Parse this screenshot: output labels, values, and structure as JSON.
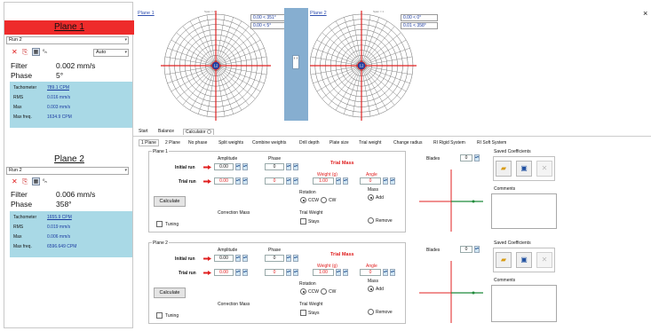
{
  "left_panel": {
    "plane1": {
      "title": "Plane 1",
      "run": "Run 2",
      "auto": "Auto",
      "unit_glyph": "⁰ₙ",
      "filter_label": "Filter",
      "filter_value": "0.002 mm/s",
      "phase_label": "Phase",
      "phase_value": "5°",
      "info": [
        {
          "label": "Tachometer",
          "value": "789.1 CPM"
        },
        {
          "label": "RMS",
          "value": "0.016 mm/s"
        },
        {
          "label": "Max",
          "value": "0.003 mm/s"
        },
        {
          "label": "Max freq.",
          "value": "1634.9 CPM"
        }
      ]
    },
    "plane2": {
      "title": "Plane 2",
      "run": "Run 2",
      "unit_glyph": "⁰ₙ",
      "filter_label": "Filter",
      "filter_value": "0.006 mm/s",
      "phase_label": "Phase",
      "phase_value": "358°",
      "info": [
        {
          "label": "Tachometer",
          "value": "1655.9 CPM"
        },
        {
          "label": "RMS",
          "value": "0.019 mm/s"
        },
        {
          "label": "Max",
          "value": "0.006 mm/s"
        },
        {
          "label": "Max freq.",
          "value": "6596.649 CPM"
        }
      ]
    }
  },
  "plots": {
    "plane1": {
      "title": "Plane 1",
      "scale_note": "Span = 1",
      "readout1": "0.00 < 351°",
      "readout2": "0.00 < 5°"
    },
    "plane2": {
      "title": "Plane 2",
      "scale_note": "Span = 1",
      "readout1": "0.00 < 0°",
      "readout2": "0.01 < 358°"
    },
    "center_label": "12",
    "splitter_glyph": "‹ ›",
    "close": "×"
  },
  "tabs_top": [
    "Start",
    "Balance",
    "Calculator"
  ],
  "tabs_sub": [
    "1 Plane",
    "2 Plane",
    "No phase",
    "Split weights",
    "Combine weights",
    "Drill depth",
    "Plate size",
    "Trial weight",
    "Change radius",
    "RI Rigid System",
    "RI Soft System"
  ],
  "calc": {
    "plane_sections": [
      {
        "title": "Plane 1",
        "amplitude_label": "Amplitude",
        "phase_label": "Phase",
        "initial_run_label": "Initial run",
        "trial_run_label": "Trial run",
        "initial_amplitude": "0.00",
        "initial_phase": "0",
        "trial_amplitude": "0.00",
        "trial_phase": "0",
        "trial_mass_label": "Trial Mass",
        "weight_label": "Weight (g)",
        "angle_label": "Angle",
        "weight_value": "1.00",
        "angle_value": "0",
        "calculate_label": "Calculate",
        "rotation_label": "Rotation",
        "ccw_label": "CCW",
        "cw_label": "CW",
        "mass_label": "Mass",
        "add_label": "Add",
        "remove_label": "Remove",
        "tuning_label": "Tuning",
        "correction_mass_label": "Correction Mass",
        "trial_weight_label": "Trial Weight",
        "stays_label": "Stays",
        "blades_label": "Blades",
        "blades_value": "0",
        "saved_coefficients_label": "Saved Coefficients",
        "comments_label": "Comments"
      },
      {
        "title": "Plane 2",
        "amplitude_label": "Amplitude",
        "phase_label": "Phase",
        "initial_run_label": "Initial run",
        "trial_run_label": "Trial run",
        "initial_amplitude": "0.00",
        "initial_phase": "0",
        "trial_amplitude": "0.00",
        "trial_phase": "0",
        "trial_mass_label": "Trial Mass",
        "weight_label": "Weight (g)",
        "angle_label": "Angle",
        "weight_value": "1.00",
        "angle_value": "0",
        "calculate_label": "Calculate",
        "rotation_label": "Rotation",
        "ccw_label": "CCW",
        "cw_label": "CW",
        "mass_label": "Mass",
        "add_label": "Add",
        "remove_label": "Remove",
        "tuning_label": "Tuning",
        "correction_mass_label": "Correction Mass",
        "trial_weight_label": "Trial Weight",
        "stays_label": "Stays",
        "blades_label": "Blades",
        "blades_value": "0",
        "saved_coefficients_label": "Saved Coefficients",
        "comments_label": "Comments"
      }
    ]
  },
  "colors": {
    "plane1_header": "#ee2b2b",
    "info_bg": "#a9d9e6",
    "splitter": "#86aed0",
    "accent_red": "#e02020"
  }
}
